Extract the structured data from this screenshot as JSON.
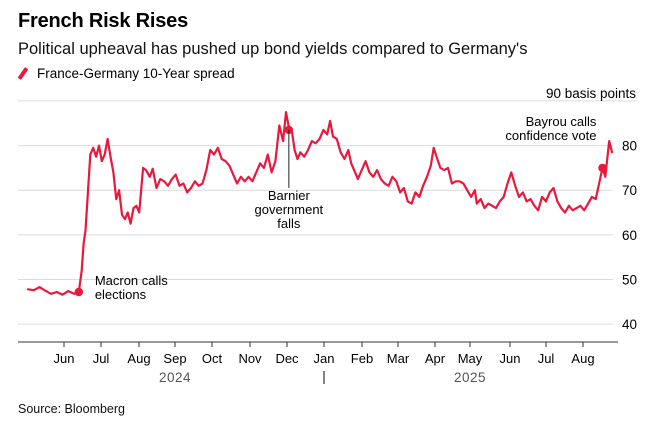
{
  "header": {
    "title": "French Risk Rises",
    "subtitle": "Political upheaval has pushed up bond yields compared to Germany's",
    "legend_label": "France-Germany 10-Year spread"
  },
  "source": "Source: Bloomberg",
  "colors": {
    "series": "#e8193c",
    "grid": "#dcdcdc",
    "axis": "#333333",
    "text": "#000000"
  },
  "chart_data": {
    "type": "line",
    "title": "French Risk Rises",
    "ylabel": "basis points",
    "unit_label": "90 basis points",
    "ylim": [
      36,
      92
    ],
    "yticks": [
      40,
      50,
      60,
      70,
      80
    ],
    "grid": true,
    "month_labels": [
      "Jun",
      "Jul",
      "Aug",
      "Sep",
      "Oct",
      "Nov",
      "Dec",
      "Jan",
      "Feb",
      "Mar",
      "Apr",
      "May",
      "Jun",
      "Jul",
      "Aug"
    ],
    "year_labels": [
      "2024",
      "2025"
    ],
    "series": [
      {
        "name": "France-Germany 10-Year spread",
        "points": [
          [
            0,
            47.8
          ],
          [
            0.6,
            47.6
          ],
          [
            1.2,
            48.3
          ],
          [
            1.8,
            47.5
          ],
          [
            2.4,
            46.8
          ],
          [
            3,
            47.2
          ],
          [
            3.6,
            46.6
          ],
          [
            4.2,
            47.4
          ],
          [
            4.8,
            46.8
          ],
          [
            5.3,
            47.2
          ],
          [
            5.6,
            52
          ],
          [
            5.8,
            58
          ],
          [
            6.0,
            61
          ],
          [
            6.2,
            68
          ],
          [
            6.5,
            78
          ],
          [
            6.8,
            79.5
          ],
          [
            7.1,
            77.5
          ],
          [
            7.4,
            80
          ],
          [
            7.7,
            76.5
          ],
          [
            8.0,
            78
          ],
          [
            8.3,
            81.5
          ],
          [
            8.6,
            77.5
          ],
          [
            8.9,
            74
          ],
          [
            9.2,
            68
          ],
          [
            9.5,
            70
          ],
          [
            9.8,
            64.5
          ],
          [
            10.1,
            63.5
          ],
          [
            10.4,
            65
          ],
          [
            10.7,
            62.5
          ],
          [
            11.0,
            66
          ],
          [
            11.3,
            66.5
          ],
          [
            11.6,
            65
          ],
          [
            12,
            75
          ],
          [
            12.3,
            74.5
          ],
          [
            12.7,
            73
          ],
          [
            13,
            74.8
          ],
          [
            13.4,
            70.5
          ],
          [
            13.8,
            72.5
          ],
          [
            14.2,
            72
          ],
          [
            14.6,
            71
          ],
          [
            15,
            72.5
          ],
          [
            15.4,
            73.5
          ],
          [
            15.8,
            71
          ],
          [
            16.2,
            71.5
          ],
          [
            16.6,
            69.5
          ],
          [
            17,
            70.5
          ],
          [
            17.4,
            72
          ],
          [
            17.8,
            71
          ],
          [
            18.2,
            71.5
          ],
          [
            18.6,
            74.5
          ],
          [
            19,
            79
          ],
          [
            19.4,
            78
          ],
          [
            19.8,
            79.5
          ],
          [
            20.2,
            77
          ],
          [
            20.6,
            76.5
          ],
          [
            21,
            75.5
          ],
          [
            21.4,
            73.5
          ],
          [
            21.8,
            71.5
          ],
          [
            22.2,
            73
          ],
          [
            22.6,
            72
          ],
          [
            23,
            73
          ],
          [
            23.4,
            72
          ],
          [
            23.8,
            74
          ],
          [
            24.2,
            76
          ],
          [
            24.6,
            75
          ],
          [
            25,
            78
          ],
          [
            25.4,
            74
          ],
          [
            25.8,
            76.5
          ],
          [
            26.2,
            84.5
          ],
          [
            26.6,
            81
          ],
          [
            26.9,
            87.5
          ],
          [
            27.2,
            84
          ],
          [
            27.5,
            83.5
          ],
          [
            27.8,
            79
          ],
          [
            28.1,
            77
          ],
          [
            28.4,
            78.5
          ],
          [
            28.8,
            77.5
          ],
          [
            29.2,
            79
          ],
          [
            29.6,
            81
          ],
          [
            30,
            80.5
          ],
          [
            30.4,
            81.5
          ],
          [
            30.8,
            83.5
          ],
          [
            31.2,
            82.5
          ],
          [
            31.5,
            85.5
          ],
          [
            31.8,
            82
          ],
          [
            32.2,
            81.5
          ],
          [
            32.6,
            78.5
          ],
          [
            33,
            77
          ],
          [
            33.4,
            79
          ],
          [
            33.7,
            76
          ],
          [
            34,
            74.5
          ],
          [
            34.4,
            72.5
          ],
          [
            34.8,
            74.5
          ],
          [
            35.2,
            76.5
          ],
          [
            35.6,
            74
          ],
          [
            36,
            73
          ],
          [
            36.4,
            74.5
          ],
          [
            36.8,
            72.5
          ],
          [
            37.2,
            71.5
          ],
          [
            37.6,
            71
          ],
          [
            38,
            73
          ],
          [
            38.4,
            72
          ],
          [
            38.8,
            69.5
          ],
          [
            39.2,
            70.5
          ],
          [
            39.6,
            67.5
          ],
          [
            40,
            67
          ],
          [
            40.4,
            69.5
          ],
          [
            40.8,
            68.5
          ],
          [
            41.2,
            71
          ],
          [
            41.6,
            73
          ],
          [
            42,
            75.5
          ],
          [
            42.3,
            79.5
          ],
          [
            42.6,
            77.5
          ],
          [
            43,
            75
          ],
          [
            43.4,
            74.5
          ],
          [
            43.8,
            75
          ],
          [
            44.2,
            71.5
          ],
          [
            44.6,
            72
          ],
          [
            45,
            72
          ],
          [
            45.4,
            71.5
          ],
          [
            45.8,
            70
          ],
          [
            46.2,
            68.5
          ],
          [
            46.6,
            70
          ],
          [
            46.8,
            67
          ],
          [
            47.2,
            68
          ],
          [
            47.6,
            66
          ],
          [
            48,
            67
          ],
          [
            48.4,
            66.5
          ],
          [
            48.8,
            66
          ],
          [
            49.2,
            67.5
          ],
          [
            49.6,
            68.5
          ],
          [
            50,
            71.5
          ],
          [
            50.4,
            74
          ],
          [
            50.8,
            71
          ],
          [
            51.2,
            68.5
          ],
          [
            51.6,
            69.5
          ],
          [
            52,
            67.5
          ],
          [
            52.4,
            68
          ],
          [
            52.8,
            66.5
          ],
          [
            53.2,
            65.5
          ],
          [
            53.6,
            68.5
          ],
          [
            54,
            67.5
          ],
          [
            54.4,
            69.5
          ],
          [
            54.8,
            70.5
          ],
          [
            55.2,
            67.5
          ],
          [
            55.6,
            66
          ],
          [
            56,
            65
          ],
          [
            56.4,
            66.5
          ],
          [
            56.8,
            65.5
          ],
          [
            57.2,
            66
          ],
          [
            57.6,
            66.5
          ],
          [
            58,
            65.5
          ],
          [
            58.4,
            67
          ],
          [
            58.8,
            68.5
          ],
          [
            59.2,
            68
          ],
          [
            59.6,
            72
          ],
          [
            59.9,
            75
          ],
          [
            60.2,
            73
          ],
          [
            60.6,
            81
          ],
          [
            60.9,
            78.5
          ]
        ]
      }
    ],
    "annotations": [
      {
        "label": "Macron calls elections",
        "lines": [
          "Macron calls",
          "elections"
        ],
        "x": 5.3,
        "y": 47.2
      },
      {
        "label": "Barnier government falls",
        "lines": [
          "Barnier",
          "government",
          "falls"
        ],
        "x": 27.2,
        "y": 83.5
      },
      {
        "label": "Bayrou calls confidence vote",
        "lines": [
          "Bayrou calls",
          "confidence vote"
        ],
        "x": 59.9,
        "y": 75
      }
    ]
  }
}
